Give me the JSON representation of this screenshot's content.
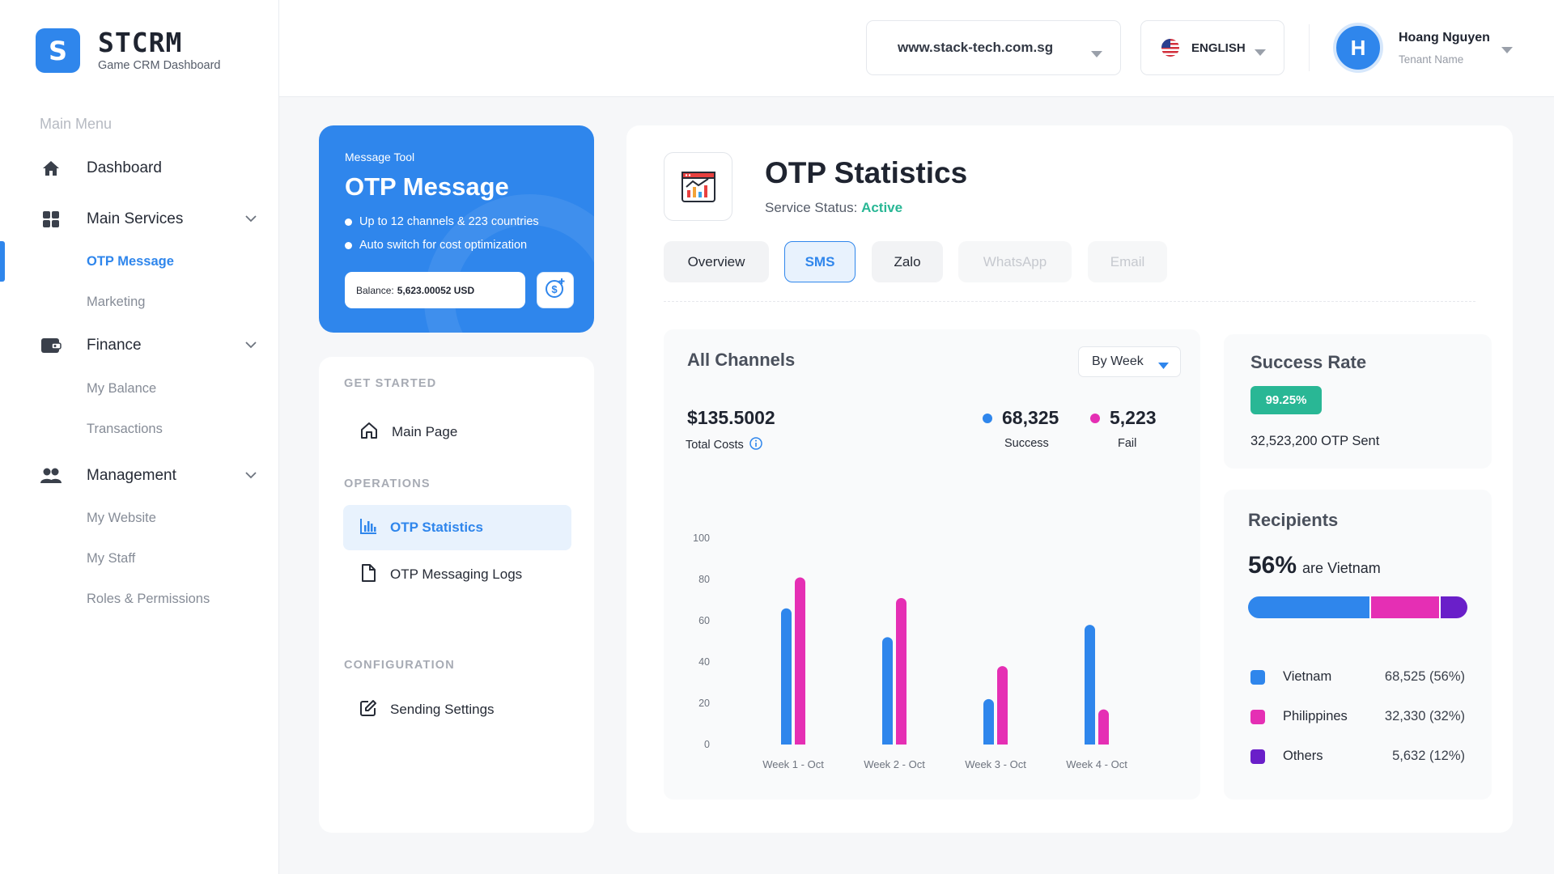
{
  "brand": {
    "logo_letter": "S",
    "name": "STCRM",
    "subtitle": "Game CRM Dashboard"
  },
  "sidebar": {
    "menu_title": "Main Menu",
    "items": [
      {
        "label": "Dashboard",
        "icon": "home-icon"
      },
      {
        "label": "Main Services",
        "icon": "grid-icon",
        "sub": [
          "OTP Message",
          "Marketing"
        ]
      },
      {
        "label": "Finance",
        "icon": "wallet-icon",
        "sub": [
          "My Balance",
          "Transactions"
        ]
      },
      {
        "label": "Management",
        "icon": "users-icon",
        "sub": [
          "My Website",
          "My Staff",
          "Roles & Permissions"
        ]
      }
    ],
    "active_sub": "OTP Message"
  },
  "header": {
    "domain": "www.stack-tech.com.sg",
    "language": "ENGLISH",
    "user": {
      "initial": "H",
      "name": "Hoang Nguyen",
      "role": "Tenant Name"
    }
  },
  "promo": {
    "small": "Message Tool",
    "title": "OTP Message",
    "bullets": [
      "Up to 12 channels & 223 countries",
      "Auto switch for cost optimization"
    ],
    "balance_label": "Balance:",
    "balance_value": "5,623.00052 USD"
  },
  "left_menu": {
    "get_started": "GET STARTED",
    "main_page": "Main Page",
    "operations": "OPERATIONS",
    "otp_statistics": "OTP Statistics",
    "otp_logs": "OTP Messaging Logs",
    "configuration": "CONFIGURATION",
    "sending_settings": "Sending Settings"
  },
  "main": {
    "title": "OTP Statistics",
    "status_label": "Service Status:",
    "status_value": "Active",
    "tabs": [
      "Overview",
      "SMS",
      "Zalo",
      "WhatsApp",
      "Email"
    ],
    "active_tab": "SMS"
  },
  "channels": {
    "title": "All Channels",
    "period": "By Week",
    "total_costs": "$135.5002",
    "total_costs_label": "Total Costs",
    "success_value": "68,325",
    "success_label": "Success",
    "fail_value": "5,223",
    "fail_label": "Fail"
  },
  "chart_data": {
    "type": "bar",
    "title": "All Channels",
    "categories": [
      "Week 1 - Oct",
      "Week 2 - Oct",
      "Week 3 - Oct",
      "Week 4 - Oct"
    ],
    "series": [
      {
        "name": "Success",
        "color": "#2f86ec",
        "values": [
          66,
          52,
          22,
          58
        ]
      },
      {
        "name": "Fail",
        "color": "#e52fb4",
        "values": [
          81,
          71,
          38,
          17
        ]
      }
    ],
    "yticks": [
      0,
      20,
      40,
      60,
      80,
      100
    ],
    "ylim": [
      0,
      100
    ],
    "xlabel": "",
    "ylabel": ""
  },
  "success_rate": {
    "title": "Success Rate",
    "badge": "99.25%",
    "sent": "32,523,200 OTP Sent"
  },
  "recipients": {
    "title": "Recipients",
    "pct": "56%",
    "pct_text": "are Vietnam",
    "items": [
      {
        "name": "Vietnam",
        "value": "68,525 (56%)",
        "share": 56,
        "color": "#2f86ec"
      },
      {
        "name": "Philippines",
        "value": "32,330 (32%)",
        "share": 32,
        "color": "#e52fb4"
      },
      {
        "name": "Others",
        "value": "5,632 (12%)",
        "share": 12,
        "color": "#6a1fc9"
      }
    ]
  }
}
